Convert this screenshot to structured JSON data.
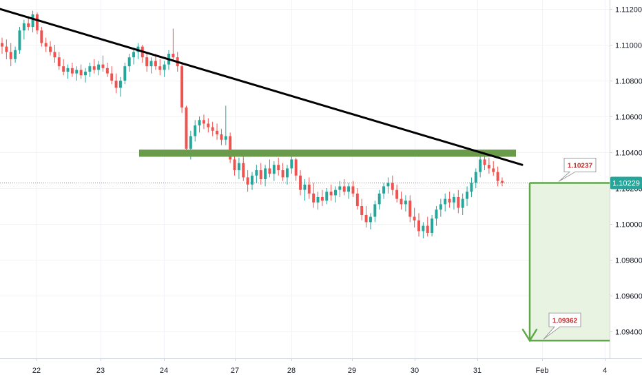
{
  "chart_data": {
    "type": "candlestick",
    "instrument": "",
    "x_axis": {
      "tick_labels": [
        "22",
        "23",
        "24",
        "27",
        "28",
        "29",
        "30",
        "31",
        "Feb",
        "4"
      ]
    },
    "y_axis": {
      "tick_labels": [
        "1.11200",
        "1.11000",
        "1.10800",
        "1.10600",
        "1.10400",
        "1.10200",
        "1.10000",
        "1.09800",
        "1.09600",
        "1.09400"
      ],
      "ylim": [
        1.0925,
        1.1125
      ],
      "grid": true
    },
    "current_price": {
      "label": "1.10229",
      "value": 1.10229,
      "color": "#26a69a"
    },
    "annotations": {
      "trendline": {
        "from": {
          "x": "21",
          "y": 1.112
        },
        "to": {
          "x": "31",
          "y": 1.1033
        },
        "color": "#000000"
      },
      "support_zone": {
        "from_x": "23",
        "to_x": "31",
        "low": 1.10375,
        "high": 1.10415,
        "color": "#6a9b4a"
      },
      "target_box": {
        "entry": 1.10229,
        "target": 1.09349,
        "color": "#5fa84a",
        "fill": "#e8f3e2"
      },
      "callouts": [
        {
          "label": "1.10237",
          "value": 1.10237
        },
        {
          "label": "1.09362",
          "value": 1.09362
        }
      ]
    },
    "colors": {
      "up": "#26a69a",
      "down": "#ef5350"
    },
    "candles": [
      [
        1.1101,
        1.1104,
        1.1095,
        1.1099
      ],
      [
        1.1099,
        1.1103,
        1.1092,
        1.1096
      ],
      [
        1.1096,
        1.1101,
        1.1088,
        1.1092
      ],
      [
        1.1092,
        1.1099,
        1.109,
        1.1097
      ],
      [
        1.1097,
        1.111,
        1.1095,
        1.1108
      ],
      [
        1.1108,
        1.1114,
        1.1103,
        1.1112
      ],
      [
        1.1112,
        1.1116,
        1.1108,
        1.111
      ],
      [
        1.111,
        1.1119,
        1.1107,
        1.1117
      ],
      [
        1.1117,
        1.1118,
        1.1106,
        1.1108
      ],
      [
        1.1108,
        1.111,
        1.1099,
        1.1101
      ],
      [
        1.1101,
        1.1104,
        1.1096,
        1.1099
      ],
      [
        1.1099,
        1.1102,
        1.1094,
        1.1096
      ],
      [
        1.1096,
        1.11,
        1.109,
        1.1093
      ],
      [
        1.1093,
        1.1096,
        1.1086,
        1.1088
      ],
      [
        1.1088,
        1.1092,
        1.1083,
        1.1085
      ],
      [
        1.1085,
        1.1089,
        1.1081,
        1.1087
      ],
      [
        1.1087,
        1.109,
        1.1082,
        1.1084
      ],
      [
        1.1084,
        1.1088,
        1.108,
        1.1086
      ],
      [
        1.1086,
        1.1089,
        1.1081,
        1.1083
      ],
      [
        1.1083,
        1.1087,
        1.1079,
        1.1085
      ],
      [
        1.1085,
        1.109,
        1.1082,
        1.1088
      ],
      [
        1.1088,
        1.1092,
        1.1084,
        1.1086
      ],
      [
        1.1086,
        1.1091,
        1.1083,
        1.1089
      ],
      [
        1.1089,
        1.1094,
        1.1085,
        1.1087
      ],
      [
        1.1087,
        1.109,
        1.1082,
        1.1084
      ],
      [
        1.1084,
        1.1088,
        1.1078,
        1.108
      ],
      [
        1.108,
        1.1084,
        1.1073,
        1.1076
      ],
      [
        1.1076,
        1.1082,
        1.1071,
        1.108
      ],
      [
        1.108,
        1.109,
        1.1078,
        1.1088
      ],
      [
        1.1088,
        1.1095,
        1.1085,
        1.1093
      ],
      [
        1.1093,
        1.1098,
        1.1089,
        1.1096
      ],
      [
        1.1096,
        1.1101,
        1.1092,
        1.1099
      ],
      [
        1.1099,
        1.11,
        1.109,
        1.1093
      ],
      [
        1.1093,
        1.1096,
        1.1085,
        1.1088
      ],
      [
        1.1088,
        1.1093,
        1.1084,
        1.1091
      ],
      [
        1.1091,
        1.1095,
        1.1086,
        1.1088
      ],
      [
        1.1088,
        1.1092,
        1.1083,
        1.1086
      ],
      [
        1.1086,
        1.1091,
        1.1082,
        1.1089
      ],
      [
        1.1089,
        1.1097,
        1.1086,
        1.1095
      ],
      [
        1.1095,
        1.1109,
        1.1091,
        1.1093
      ],
      [
        1.1093,
        1.1096,
        1.1085,
        1.1088
      ],
      [
        1.1088,
        1.1089,
        1.1062,
        1.1065
      ],
      [
        1.1065,
        1.1066,
        1.1039,
        1.1042
      ],
      [
        1.1042,
        1.1052,
        1.1036,
        1.1049
      ],
      [
        1.1049,
        1.1058,
        1.1046,
        1.1055
      ],
      [
        1.1055,
        1.106,
        1.1051,
        1.1058
      ],
      [
        1.1058,
        1.1061,
        1.1053,
        1.1056
      ],
      [
        1.1056,
        1.1059,
        1.1051,
        1.1054
      ],
      [
        1.1054,
        1.1057,
        1.1049,
        1.1052
      ],
      [
        1.1052,
        1.1056,
        1.1047,
        1.105
      ],
      [
        1.105,
        1.1053,
        1.1044,
        1.1047
      ],
      [
        1.1047,
        1.1066,
        1.1044,
        1.1049
      ],
      [
        1.1049,
        1.1051,
        1.1034,
        1.1036
      ],
      [
        1.1036,
        1.1039,
        1.1027,
        1.103
      ],
      [
        1.103,
        1.1037,
        1.1025,
        1.1034
      ],
      [
        1.1034,
        1.1038,
        1.1024,
        1.1026
      ],
      [
        1.1026,
        1.103,
        1.1018,
        1.1022
      ],
      [
        1.1022,
        1.1029,
        1.1019,
        1.1027
      ],
      [
        1.1027,
        1.1033,
        1.1023,
        1.103
      ],
      [
        1.103,
        1.1034,
        1.1022,
        1.1025
      ],
      [
        1.1025,
        1.1033,
        1.1021,
        1.1031
      ],
      [
        1.1031,
        1.1036,
        1.1026,
        1.1028
      ],
      [
        1.1028,
        1.1035,
        1.1024,
        1.1033
      ],
      [
        1.1033,
        1.1037,
        1.1027,
        1.103
      ],
      [
        1.103,
        1.1034,
        1.1024,
        1.1026
      ],
      [
        1.1026,
        1.1033,
        1.1022,
        1.1031
      ],
      [
        1.1031,
        1.1039,
        1.1028,
        1.1036
      ],
      [
        1.1036,
        1.1037,
        1.1024,
        1.1027
      ],
      [
        1.1027,
        1.103,
        1.1016,
        1.1019
      ],
      [
        1.1019,
        1.1025,
        1.1013,
        1.1022
      ],
      [
        1.1022,
        1.1026,
        1.1014,
        1.1017
      ],
      [
        1.1017,
        1.1023,
        1.1009,
        1.1012
      ],
      [
        1.1012,
        1.1018,
        1.1008,
        1.1015
      ],
      [
        1.1015,
        1.1019,
        1.101,
        1.1013
      ],
      [
        1.1013,
        1.102,
        1.1011,
        1.1018
      ],
      [
        1.1018,
        1.1022,
        1.1013,
        1.1016
      ],
      [
        1.1016,
        1.1021,
        1.1012,
        1.1019
      ],
      [
        1.1019,
        1.1024,
        1.1015,
        1.1021
      ],
      [
        1.1021,
        1.1025,
        1.1016,
        1.1018
      ],
      [
        1.1018,
        1.1023,
        1.1014,
        1.1021
      ],
      [
        1.1021,
        1.1024,
        1.1015,
        1.1017
      ],
      [
        1.1017,
        1.102,
        1.1008,
        1.101
      ],
      [
        1.101,
        1.1014,
        1.1002,
        1.1005
      ],
      [
        1.1005,
        1.101,
        1.0998,
        1.1001
      ],
      [
        1.1001,
        1.1006,
        1.0997,
        1.1004
      ],
      [
        1.1004,
        1.1013,
        1.1001,
        1.1011
      ],
      [
        1.1011,
        1.1019,
        1.1008,
        1.1017
      ],
      [
        1.1017,
        1.1023,
        1.1014,
        1.1021
      ],
      [
        1.1021,
        1.1026,
        1.1017,
        1.1023
      ],
      [
        1.1023,
        1.1027,
        1.1016,
        1.1019
      ],
      [
        1.1019,
        1.1022,
        1.1012,
        1.1014
      ],
      [
        1.1014,
        1.1018,
        1.1008,
        1.1011
      ],
      [
        1.1011,
        1.1016,
        1.1007,
        1.1013
      ],
      [
        1.1013,
        1.1016,
        1.1001,
        1.1004
      ],
      [
        1.1004,
        1.1009,
        1.0998,
        1.1002
      ],
      [
        1.1002,
        1.1006,
        1.0993,
        1.0996
      ],
      [
        1.0996,
        1.1001,
        1.0992,
        1.0999
      ],
      [
        1.0999,
        1.1004,
        1.0993,
        1.0995
      ],
      [
        1.0995,
        1.1005,
        1.0993,
        1.1003
      ],
      [
        1.1003,
        1.101,
        1.0999,
        1.1008
      ],
      [
        1.1008,
        1.1014,
        1.1004,
        1.1011
      ],
      [
        1.1011,
        1.1017,
        1.1007,
        1.1014
      ],
      [
        1.1014,
        1.1018,
        1.1009,
        1.1012
      ],
      [
        1.1012,
        1.1017,
        1.1008,
        1.1015
      ],
      [
        1.1015,
        1.1019,
        1.1006,
        1.1009
      ],
      [
        1.1009,
        1.1017,
        1.1005,
        1.1014
      ],
      [
        1.1014,
        1.1021,
        1.101,
        1.1018
      ],
      [
        1.1018,
        1.1026,
        1.1015,
        1.1023
      ],
      [
        1.1023,
        1.1031,
        1.102,
        1.1029
      ],
      [
        1.1029,
        1.1038,
        1.1026,
        1.1036
      ],
      [
        1.1036,
        1.104,
        1.103,
        1.1033
      ],
      [
        1.1033,
        1.1037,
        1.1028,
        1.1031
      ],
      [
        1.1031,
        1.1035,
        1.1027,
        1.1029
      ],
      [
        1.1029,
        1.1032,
        1.1021,
        1.1024
      ],
      [
        1.1024,
        1.1026,
        1.1021,
        1.1023
      ]
    ]
  }
}
